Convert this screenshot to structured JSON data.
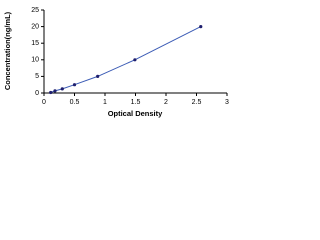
{
  "chart_data": {
    "type": "scatter",
    "x_label": "Optical Density",
    "y_label": "Concentration(ng/mL)",
    "x": [
      0.11,
      0.18,
      0.3,
      0.5,
      0.88,
      1.49,
      2.57
    ],
    "series": [
      {
        "color": "#1f1f6e",
        "line_color": "#3b5bb5",
        "values": [
          0.16,
          0.63,
          1.25,
          2.5,
          5,
          10,
          20
        ]
      }
    ],
    "xlim": [
      0,
      3
    ],
    "xticks": [
      0,
      0.5,
      1,
      1.5,
      2,
      2.5,
      3
    ],
    "ylim": [
      0,
      25
    ],
    "yticks": [
      0,
      5,
      10,
      15,
      20,
      25
    ],
    "grid": false
  }
}
